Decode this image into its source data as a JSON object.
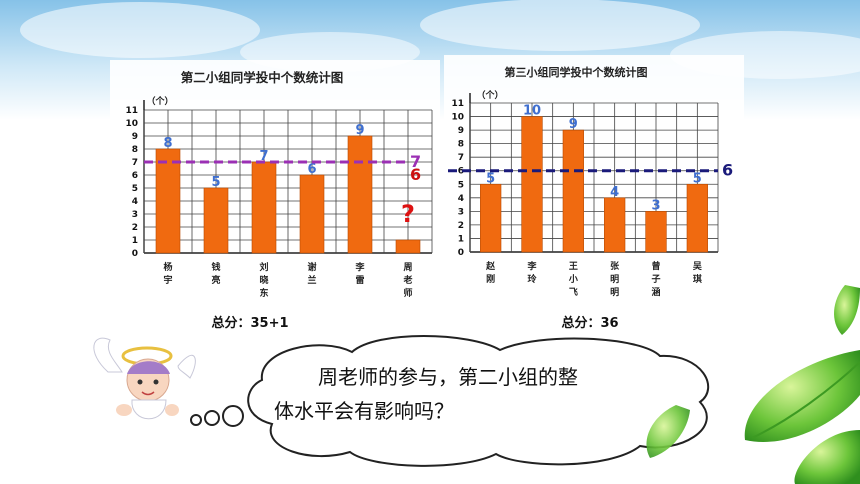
{
  "chart_data": [
    {
      "type": "bar",
      "title": "第二小组同学投中个数统计图",
      "ylabel": "（个）",
      "ylim": [
        0,
        11
      ],
      "categories": [
        "杨宇",
        "钱亮",
        "刘晓东",
        "谢兰",
        "李雷",
        "周老师"
      ],
      "values": [
        8,
        5,
        7,
        6,
        9,
        1
      ],
      "data_labels": [
        "8",
        "5",
        "7",
        "6",
        "9",
        "?"
      ],
      "average_line": {
        "value": 7,
        "label": "7",
        "color": "#9b30b4",
        "style": "dashed"
      },
      "previous_average": {
        "value": 6,
        "label": "6",
        "color": "#cc1111"
      },
      "total_label": "总分：35+1",
      "grid": true,
      "bar_color": "#f06a10"
    },
    {
      "type": "bar",
      "title": "第三小组同学投中个数统计图",
      "ylabel": "（个）",
      "ylim": [
        0,
        11
      ],
      "categories": [
        "赵刚",
        "李玲",
        "王小飞",
        "张明明",
        "曾子涵",
        "吴琪"
      ],
      "values": [
        5,
        10,
        9,
        4,
        3,
        5
      ],
      "data_labels": [
        "5",
        "10",
        "9",
        "4",
        "3",
        "5"
      ],
      "average_line": {
        "value": 6,
        "label": "6",
        "color": "#1a1a7a",
        "style": "dashed"
      },
      "total_label": "总分：36",
      "grid": true,
      "bar_color": "#f06a10"
    }
  ],
  "bubble": {
    "line1": "周老师的参与，第二小组的整",
    "line2": "体水平会有影响吗？"
  },
  "colors": {
    "sky": "#a9d4ee",
    "bar": "#f06a10",
    "value_label": "#3f6fd0",
    "leaf": "#4cb02a"
  },
  "icons": [
    "cherub-icon",
    "leaf-icon",
    "thought-bubble-icon"
  ]
}
